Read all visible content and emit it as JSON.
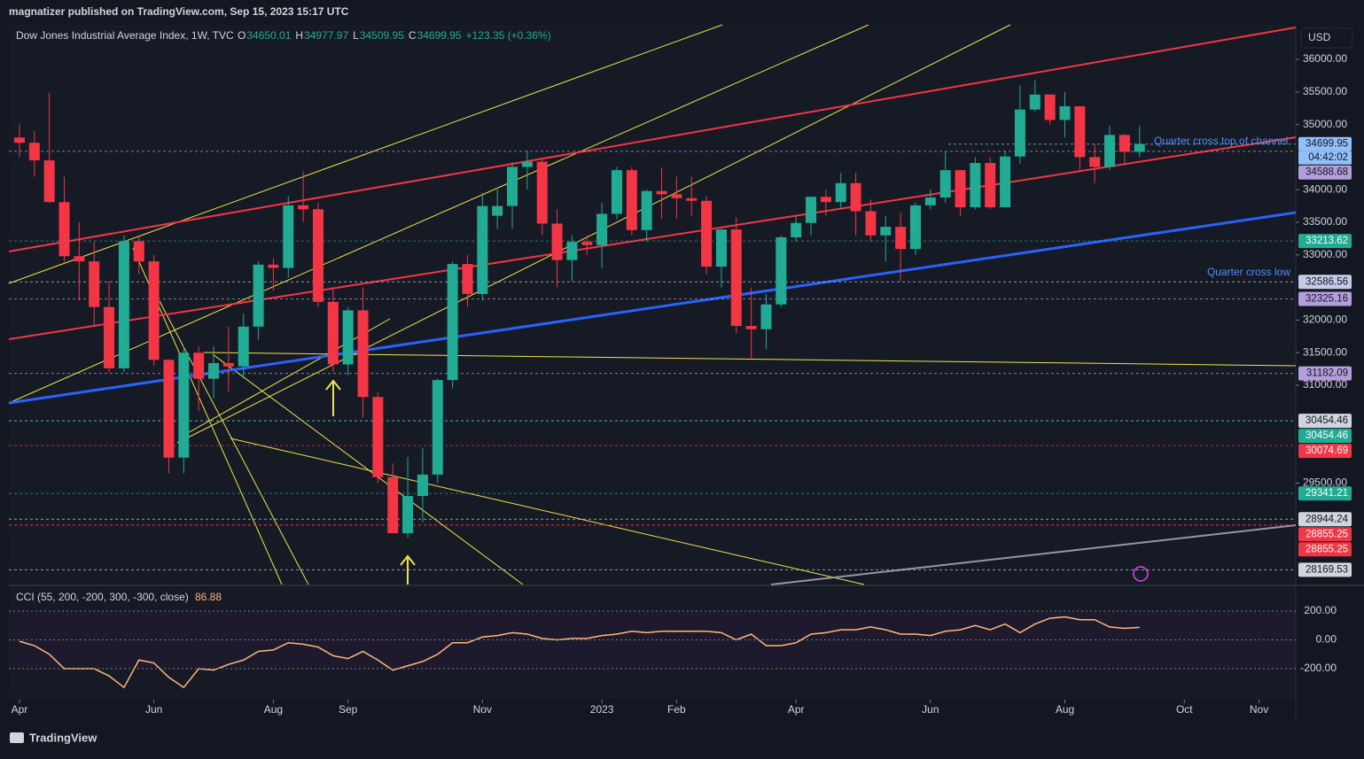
{
  "header": {
    "publisher": "magnatizer published on TradingView.com, Sep 15, 2023 15:17 UTC",
    "footer": "TradingView"
  },
  "chart_data": {
    "type": "candlestick",
    "title": "Dow Jones Industrial Average Index, 1W, TVC",
    "ohlc_labels": [
      "O",
      "H",
      "L",
      "C"
    ],
    "last": {
      "open": 34650.01,
      "high": 34977.97,
      "low": 34509.95,
      "close": 34699.95,
      "change": "+123.35 (+0.36%)"
    },
    "currency": "USD",
    "countdown": "04:42:02",
    "x": [
      0,
      1,
      2,
      3,
      4,
      5,
      6,
      7,
      8,
      9,
      10,
      11,
      12,
      13,
      14,
      15,
      16,
      17,
      18,
      19,
      20,
      21,
      22,
      23,
      24,
      25,
      26,
      27,
      28,
      29,
      30,
      31,
      32,
      33,
      34,
      35,
      36,
      37,
      38,
      39,
      40,
      41,
      42,
      43,
      44,
      45,
      46,
      47,
      48,
      49,
      50,
      51,
      52,
      53,
      54,
      55,
      56,
      57,
      58,
      59,
      60,
      61,
      62,
      63,
      64,
      65,
      66,
      67,
      68,
      69,
      70,
      71,
      72,
      73,
      74,
      75
    ],
    "open": [
      34800,
      34720,
      34450,
      33810,
      32980,
      32900,
      32200,
      31260,
      33210,
      32900,
      31390,
      29890,
      31500,
      31100,
      31340,
      31290,
      31900,
      32850,
      32800,
      33760,
      33700,
      32280,
      31320,
      32150,
      30820,
      29590,
      28730,
      29300,
      29630,
      31080,
      32860,
      32400,
      33600,
      33750,
      34350,
      34430,
      33480,
      32920,
      33200,
      33150,
      33630,
      34300,
      33380,
      33980,
      33930,
      33870,
      33830,
      32820,
      33390,
      31910,
      31860,
      32240,
      33270,
      33490,
      33890,
      33810,
      34100,
      33670,
      33300,
      33430,
      33090,
      33760,
      33880,
      34300,
      33730,
      34410,
      33730,
      34510,
      35230,
      35460,
      35070,
      35280,
      34500,
      34350,
      34840,
      34580
    ],
    "high": [
      35000,
      34900,
      35490,
      34200,
      33500,
      33200,
      32600,
      33300,
      33300,
      33000,
      31400,
      31600,
      31600,
      31600,
      31900,
      32100,
      32900,
      32950,
      33900,
      34280,
      33800,
      32500,
      32200,
      32500,
      30900,
      29800,
      29900,
      30040,
      31100,
      32900,
      33000,
      33950,
      34000,
      34420,
      34600,
      34480,
      33700,
      33300,
      33300,
      33800,
      34350,
      34350,
      34000,
      34340,
      34200,
      34200,
      33900,
      33400,
      33570,
      32500,
      32400,
      33300,
      33600,
      33900,
      34000,
      34260,
      34260,
      33850,
      33600,
      33650,
      33800,
      34000,
      34590,
      34300,
      34500,
      34500,
      34600,
      35600,
      35680,
      35450,
      35500,
      35280,
      34700,
      34980,
      34850,
      34980
    ],
    "low": [
      34500,
      34200,
      33800,
      32900,
      32300,
      31900,
      31200,
      31200,
      32700,
      31300,
      29650,
      29650,
      30600,
      30800,
      30900,
      31100,
      31700,
      32450,
      32650,
      33500,
      32200,
      31200,
      31150,
      30500,
      29500,
      28800,
      28660,
      28900,
      29500,
      30950,
      32200,
      32300,
      33400,
      33400,
      34000,
      33300,
      32500,
      32600,
      33000,
      32800,
      33550,
      33300,
      33200,
      33550,
      33550,
      33600,
      32700,
      32500,
      31800,
      31400,
      31550,
      32200,
      33200,
      33300,
      33600,
      33700,
      33300,
      33200,
      32900,
      32600,
      33000,
      33700,
      33800,
      33600,
      33700,
      33700,
      33800,
      34400,
      35200,
      35000,
      34800,
      34300,
      34100,
      34300,
      34400,
      34500
    ],
    "close": [
      34720,
      34450,
      33810,
      32980,
      32900,
      32200,
      31260,
      33210,
      32900,
      31390,
      29890,
      31500,
      31100,
      31340,
      31290,
      31900,
      32850,
      32800,
      33760,
      33700,
      32280,
      31320,
      32150,
      30820,
      29590,
      28730,
      29300,
      29630,
      31080,
      32860,
      32400,
      33750,
      33750,
      34350,
      34430,
      33480,
      32920,
      33200,
      33150,
      33630,
      34300,
      33380,
      33980,
      33930,
      33870,
      33830,
      32820,
      33390,
      31910,
      31860,
      32240,
      33270,
      33490,
      33890,
      33810,
      34100,
      33670,
      33300,
      33430,
      33090,
      33760,
      33880,
      34300,
      33730,
      34410,
      33730,
      34510,
      35230,
      35460,
      35070,
      35280,
      34500,
      34350,
      34840,
      34580,
      34700
    ],
    "up_color": "#22ab94",
    "down_color": "#f23645",
    "xlim": [
      -0.71,
      85.46
    ],
    "xticks": [
      {
        "value": 0,
        "label": "Apr"
      },
      {
        "value": 9,
        "label": "Jun"
      },
      {
        "value": 17,
        "label": "Aug"
      },
      {
        "value": 22,
        "label": "Sep"
      },
      {
        "value": 31,
        "label": "Nov"
      },
      {
        "value": 39,
        "label": "2023"
      },
      {
        "value": 44,
        "label": "Feb"
      },
      {
        "value": 52,
        "label": "Apr"
      },
      {
        "value": 61,
        "label": "Jun"
      },
      {
        "value": 70,
        "label": "Aug"
      },
      {
        "value": 78,
        "label": "Oct"
      },
      {
        "value": 83,
        "label": "Nov"
      }
    ],
    "ylim": [
      27943,
      36530
    ],
    "yticks": [
      {
        "value": 36000,
        "label": "36000.00"
      },
      {
        "value": 35500,
        "label": "35500.00"
      },
      {
        "value": 35000,
        "label": "35000.00"
      },
      {
        "value": 34000,
        "label": "34000.00"
      },
      {
        "value": 33500,
        "label": "33500.00"
      },
      {
        "value": 33000,
        "label": "33000.00"
      },
      {
        "value": 32000,
        "label": "32000.00"
      },
      {
        "value": 31500,
        "label": "31500.00"
      },
      {
        "value": 31000,
        "label": "31000.00"
      },
      {
        "value": 29500,
        "label": "29500.00"
      }
    ],
    "levels": [
      34699.95,
      34588.68,
      33213.62,
      32586.56,
      32325.16,
      31182.09,
      30454.46,
      30454.46,
      30074.69,
      29341.21,
      28944.24,
      28855.25,
      28855.25,
      28169.53
    ],
    "level_colors": [
      "#90bff9",
      "#b39ddb",
      "#22ab94",
      "#c5cae9",
      "#b39ddb",
      "#b39ddb",
      "#d1d4dc",
      "#22ab94",
      "#f23645",
      "#22ab94",
      "#d1d4dc",
      "#f23645",
      "#f23645",
      "#d1d4dc"
    ],
    "annotations": [
      "Quarter cross top of channel",
      "Quarter cross low"
    ],
    "cci": {
      "name": "CCI (55, 200, -200, 300, -300, close)",
      "last": 86.88,
      "color": "#ffb77a",
      "values": [
        -10,
        -40,
        -100,
        -200,
        -200,
        -200,
        -250,
        -330,
        -140,
        -160,
        -260,
        -330,
        -200,
        -210,
        -170,
        -140,
        -80,
        -70,
        -20,
        -30,
        -50,
        -110,
        -130,
        -80,
        -140,
        -210,
        -180,
        -150,
        -100,
        -20,
        -20,
        20,
        30,
        50,
        40,
        10,
        0,
        10,
        10,
        30,
        40,
        60,
        50,
        60,
        60,
        60,
        60,
        50,
        0,
        40,
        -40,
        -40,
        -20,
        40,
        50,
        70,
        70,
        90,
        70,
        40,
        40,
        30,
        60,
        70,
        100,
        70,
        110,
        50,
        110,
        150,
        160,
        140,
        140,
        90,
        80,
        86.88
      ],
      "ylim": [
        -415,
        372
      ],
      "yticks": [
        {
          "value": 200,
          "label": "200.00"
        },
        {
          "value": 0,
          "label": "0.00"
        },
        {
          "value": -200,
          "label": "-200.00"
        }
      ]
    }
  }
}
